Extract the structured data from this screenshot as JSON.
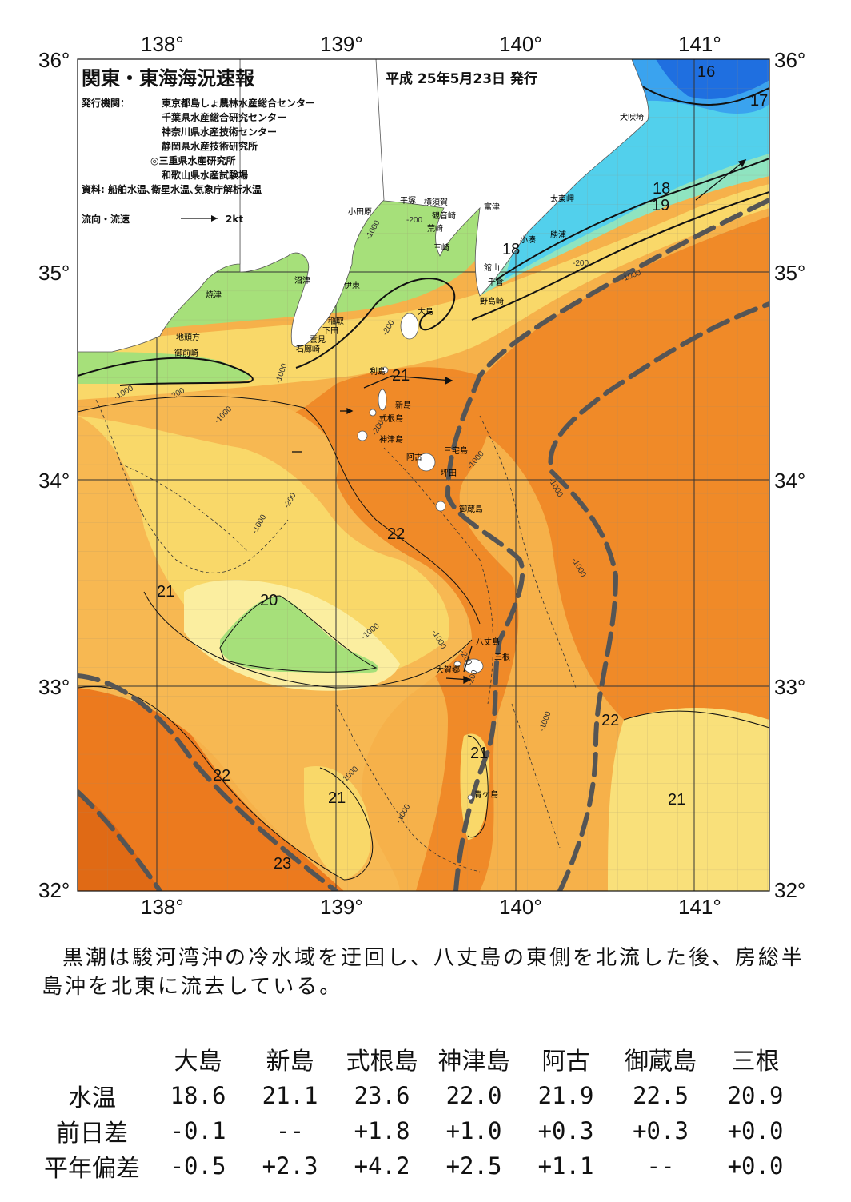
{
  "header": {
    "title": "関東・東海海況速報",
    "issue_date": "平成 25年5月23日 発行",
    "publisher_label": "発行機関：",
    "publishers": [
      "東京都島しょ農林水産総合センター",
      "千葉県水産総合研究センター",
      "神奈川県水産技術センター",
      "静岡県水産技術研究所",
      "◎三重県水産研究所",
      "和歌山県水産試験場"
    ],
    "source": "資料: 船舶水温､衛星水温､気象庁解析水温",
    "legend_label": "流向・流速",
    "legend_value": "2kt"
  },
  "axes": {
    "longitude": [
      "138°",
      "139°",
      "140°",
      "141°"
    ],
    "latitude": [
      "36°",
      "35°",
      "34°",
      "33°",
      "32°"
    ]
  },
  "places": [
    "犬吠埼",
    "太東岬",
    "勝浦",
    "小湊",
    "富津",
    "館山",
    "千倉",
    "野島崎",
    "横須賀",
    "平塚",
    "小田原",
    "観音崎",
    "荒崎",
    "三崎",
    "沼津",
    "伊東",
    "焼津",
    "稲取",
    "下田",
    "雲見",
    "石廊崎",
    "地頭方",
    "御前崎",
    "大島",
    "利島",
    "新島",
    "式根島",
    "神津島",
    "三宅島",
    "阿古",
    "坪田",
    "御蔵島",
    "八丈島",
    "三根",
    "大賀郷",
    "青ケ島"
  ],
  "isotherm_labels": [
    "16",
    "17",
    "18",
    "19",
    "18",
    "21",
    "22",
    "21",
    "20",
    "22",
    "21",
    "22",
    "21",
    "21",
    "23"
  ],
  "depth_labels": [
    "-200",
    "-1000",
    "-200",
    "-1000",
    "-1000",
    "-200",
    "-1000",
    "-1000",
    "-200",
    "-1000",
    "-200",
    "-1000",
    "-200",
    "-1000",
    "-1000",
    "-1000",
    "-1000",
    "-1000",
    "-200",
    "-1000",
    "-1000",
    "-200"
  ],
  "colors": {
    "t16": "#1f6fe0",
    "t17": "#3aa3ef",
    "t18": "#52d0ec",
    "t19": "#8fe4c0",
    "t20": "#a6e07a",
    "t21": "#fbf2a0",
    "t21b": "#f9d869",
    "t22": "#f6b14a",
    "t22b": "#f4a238",
    "t23": "#f08a28",
    "t23b": "#e9731c",
    "land": "#ffffff",
    "kuroshio": "#555555"
  },
  "summary": "黒潮は駿河湾沖の冷水域を迂回し、八丈島の東側を北流した後、房総半島沖を北東に流去している。",
  "table": {
    "columns": [
      "大島",
      "新島",
      "式根島",
      "神津島",
      "阿古",
      "御蔵島",
      "三根"
    ],
    "rows": [
      {
        "label": "水温",
        "values": [
          "18.6",
          "21.1",
          "23.6",
          "22.0",
          "21.9",
          "22.5",
          "20.9"
        ]
      },
      {
        "label": "前日差",
        "values": [
          "-0.1",
          "--",
          "+1.8",
          "+1.0",
          "+0.3",
          "+0.3",
          "+0.0"
        ]
      },
      {
        "label": "平年偏差",
        "values": [
          "-0.5",
          "+2.3",
          "+4.2",
          "+2.5",
          "+1.1",
          "--",
          "+0.0"
        ]
      }
    ]
  }
}
